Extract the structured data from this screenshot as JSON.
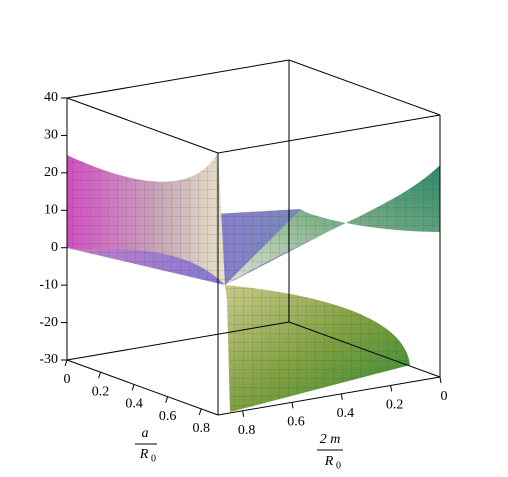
{
  "chart_data": {
    "type": "surface3d",
    "x_label": {
      "numerator": "a",
      "denominator": "R",
      "subscript": "0"
    },
    "y_label": {
      "numerator": "2 m",
      "denominator": "R",
      "subscript": "0"
    },
    "xlim": [
      0,
      0.9
    ],
    "xticks": [
      0,
      0.2,
      0.4,
      0.6,
      0.8
    ],
    "ylim": [
      0,
      0.9
    ],
    "yticks": [
      0.8,
      0.6,
      0.4,
      0.2,
      0
    ],
    "zlim": [
      -30,
      40
    ],
    "zticks": [
      -30,
      -20,
      -10,
      0,
      10,
      20,
      30,
      40
    ]
  }
}
